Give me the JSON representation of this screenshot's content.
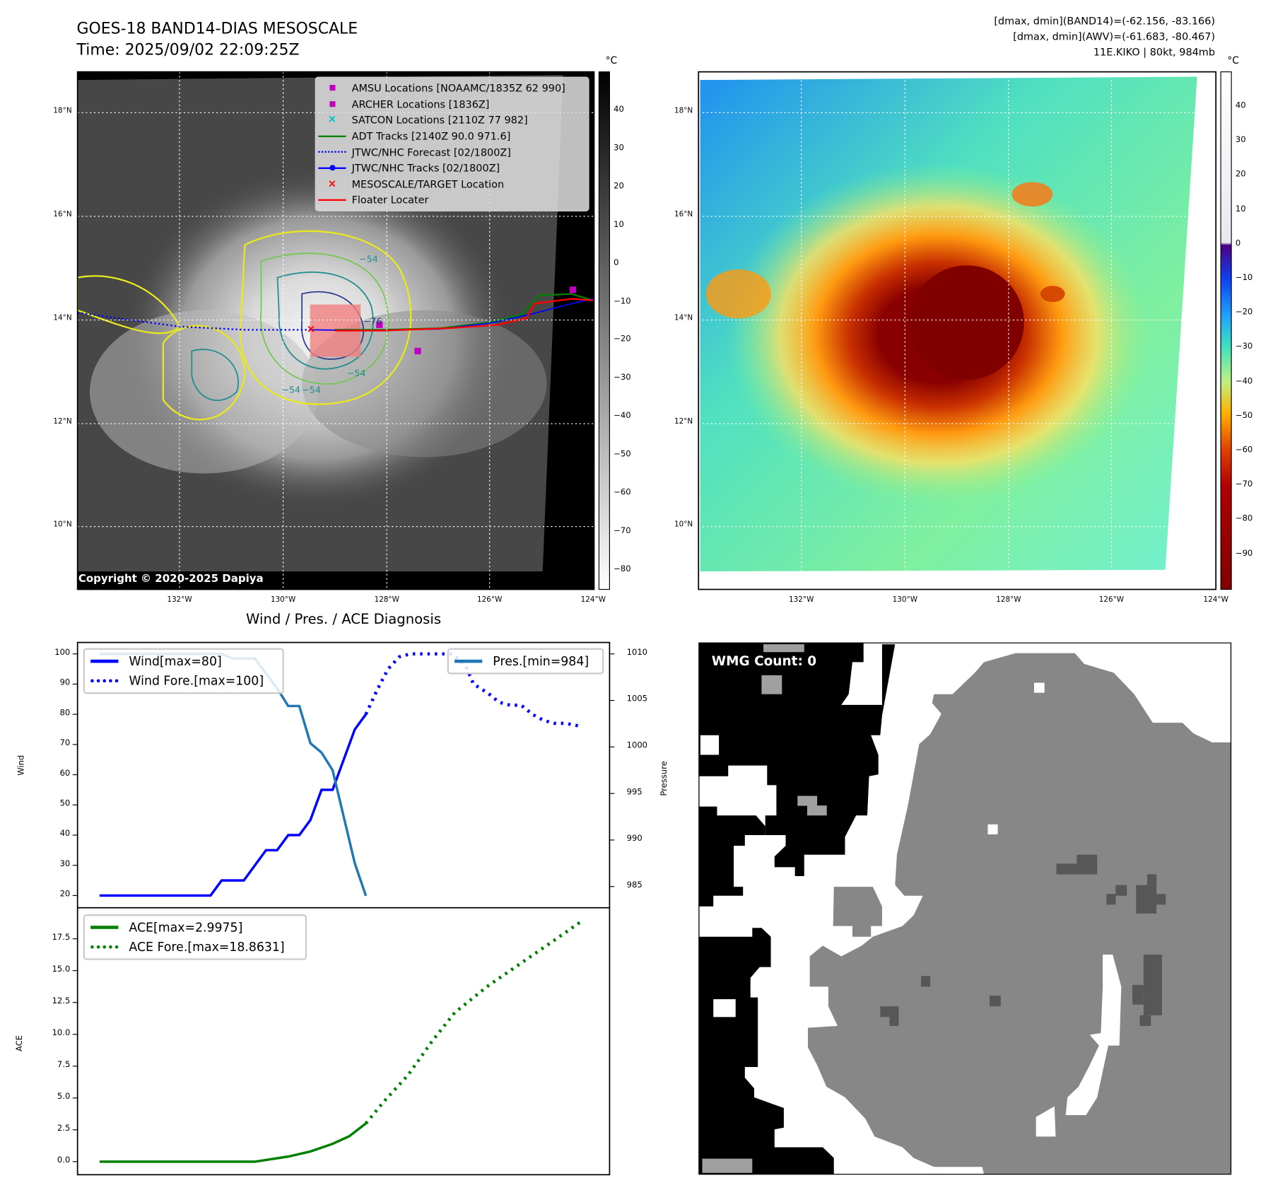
{
  "header": {
    "title": "GOES-18 BAND14-DIAS MESOSCALE",
    "time": "Time: 2025/09/02 22:09:25Z",
    "stats": [
      "[dmax, dmin](BAND14)=(-62.156, -83.166)",
      "[dmax, dmin](AWV)=(-61.683, -80.467)",
      "11E.KIKO | 80kt, 984mb"
    ]
  },
  "left_map": {
    "unit": "°C",
    "colorbar_ticks": [
      "40",
      "30",
      "20",
      "10",
      "0",
      "−10",
      "−20",
      "−30",
      "−40",
      "−50",
      "−60",
      "−70",
      "−80"
    ],
    "lat_ticks": [
      "18°N",
      "16°N",
      "14°N",
      "12°N",
      "10°N"
    ],
    "lon_ticks": [
      "132°W",
      "130°W",
      "128°W",
      "126°W",
      "124°W"
    ],
    "contour_labels": [
      "−54",
      "−54",
      "−54",
      "−54",
      "−76"
    ],
    "legend": [
      {
        "label": "AMSU Locations [NOAAMC/1835Z 62 990]",
        "symbol": "square",
        "color": "#bf00bf"
      },
      {
        "label": "ARCHER Locations [1836Z]",
        "symbol": "square",
        "color": "#bf00bf"
      },
      {
        "label": "SATCON Locations [2110Z 77 982]",
        "symbol": "x",
        "color": "#00bfbf"
      },
      {
        "label": "ADT Tracks [2140Z 90.0 971.6]",
        "symbol": "line",
        "color": "#008000"
      },
      {
        "label": "JTWC/NHC Forecast [02/1800Z]",
        "symbol": "dotted",
        "color": "#0000ff"
      },
      {
        "label": "JTWC/NHC Tracks [02/1800Z]",
        "symbol": "line-dot",
        "color": "#0000ff"
      },
      {
        "label": "MESOSCALE/TARGET Location",
        "symbol": "x",
        "color": "#ff0000"
      },
      {
        "label": "Floater Locater",
        "symbol": "line",
        "color": "#ff0000"
      }
    ],
    "copyright": "Copyright © 2020-2025 Dapiya"
  },
  "right_map": {
    "unit": "°C",
    "colorbar_ticks": [
      "40",
      "30",
      "20",
      "10",
      "0",
      "−10",
      "−20",
      "−30",
      "−40",
      "−50",
      "−60",
      "−70",
      "−80",
      "−90"
    ],
    "lat_ticks": [
      "18°N",
      "16°N",
      "14°N",
      "12°N",
      "10°N"
    ],
    "lon_ticks": [
      "132°W",
      "130°W",
      "128°W",
      "126°W",
      "124°W"
    ]
  },
  "chart_data": {
    "type": "line",
    "title": "Wind / Pres. / ACE Diagnosis",
    "wind_panel": {
      "ylabel": "Wind",
      "y2label": "Pressure",
      "ylim": [
        15,
        104
      ],
      "y2lim": [
        983,
        1011.2
      ],
      "yticks": [
        "100",
        "90",
        "80",
        "70",
        "60",
        "50",
        "40",
        "30",
        "20"
      ],
      "y2ticks": [
        "1010",
        "1005",
        "1000",
        "995",
        "990",
        "985"
      ],
      "series": [
        {
          "name": "Wind[max=80]",
          "style": "solid",
          "color": "#0000ff",
          "axis": "left",
          "x": [
            0,
            10,
            11,
            13,
            15,
            16,
            17,
            18,
            19,
            20,
            21,
            23,
            24
          ],
          "y": [
            20,
            20,
            25,
            25,
            35,
            35,
            40,
            40,
            45,
            55,
            55,
            75,
            80
          ]
        },
        {
          "name": "Wind Fore.[max=100]",
          "style": "dotted",
          "color": "#0000ff",
          "axis": "left",
          "x": [
            24,
            25,
            26,
            27,
            28,
            31.8,
            33,
            33.7,
            35,
            36,
            37,
            38,
            39,
            40,
            41,
            42,
            43.4
          ],
          "y": [
            80,
            88,
            95,
            99,
            100,
            100,
            96,
            90,
            87,
            84,
            83,
            83,
            80,
            78,
            77,
            77,
            76
          ]
        },
        {
          "name": "Pres.[min=984]",
          "style": "solid",
          "color": "#1f77b4",
          "axis": "right",
          "x": [
            0,
            11,
            12,
            14,
            16,
            17,
            18,
            19,
            20,
            21,
            23,
            24
          ],
          "y": [
            1010,
            1010,
            1009.5,
            1009.5,
            1006.3,
            1004.4,
            1004.4,
            1000.4,
            999.4,
            997.5,
            987.5,
            984
          ]
        }
      ]
    },
    "ace_panel": {
      "ylabel": "ACE",
      "ylim": [
        -1,
        19.5
      ],
      "yticks": [
        "17.5",
        "15.0",
        "12.5",
        "10.0",
        "7.5",
        "5.0",
        "2.5",
        "0.0"
      ],
      "series": [
        {
          "name": "ACE[max=2.9975]",
          "style": "solid",
          "color": "#008000",
          "x": [
            0,
            14,
            17,
            19,
            21,
            22.5,
            24
          ],
          "y": [
            0,
            0,
            0.4,
            0.8,
            1.4,
            2.0,
            3.0
          ]
        },
        {
          "name": "ACE Fore.[max=18.8631]",
          "style": "dotted",
          "color": "#008000",
          "x": [
            24,
            25.6,
            27.8,
            30,
            32,
            35,
            38,
            41,
            43.4
          ],
          "y": [
            3.0,
            4.7,
            6.8,
            9.5,
            11.7,
            13.8,
            15.6,
            17.4,
            18.86
          ]
        }
      ]
    }
  },
  "wmg": {
    "label": "WMG Count: 0"
  }
}
